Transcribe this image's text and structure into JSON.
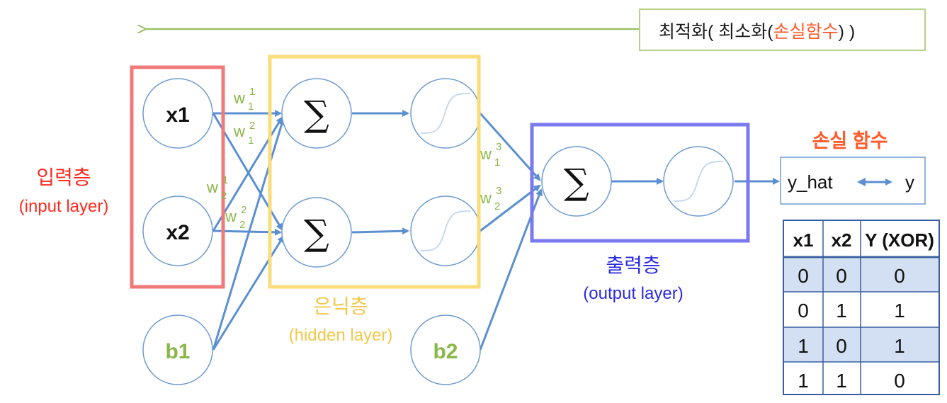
{
  "colors": {
    "arrow": "#5b8fd0",
    "node_stroke": "#6e9bd2",
    "input_box": "#f07a7a",
    "hidden_box": "#fadd7a",
    "output_box": "#7a7af0",
    "weight_green": "#8bb648",
    "bias_green": "#8bb648",
    "red_text": "#ff2a1f",
    "orange_text": "#ff5a2a",
    "yellow_text": "#f2c84a",
    "blue_text": "#2a2ae0",
    "table_border": "#3a5fa0",
    "table_shade": "#d3dff2",
    "optimize_arrow": "#9bc266",
    "optimize_box": "#b8d18a"
  },
  "optimize": {
    "text_prefix": "최적화( 최소화(",
    "text_loss": "손실함수",
    "text_suffix": ") )"
  },
  "nodes": {
    "x1": "x1",
    "x2": "x2",
    "b1": "b1",
    "b2": "b2",
    "sum_symbol": "∑"
  },
  "weights": {
    "w11_base": "w",
    "w11_sup": "1",
    "w11_sub": "1",
    "w12_base": "w",
    "w12_sup": "2",
    "w12_sub": "1",
    "w21_base": "w",
    "w21_sup": "1",
    "w21_sub": "2",
    "w22_base": "w",
    "w22_sup": "2",
    "w22_sub": "2",
    "w31_base": "w",
    "w31_sup": "3",
    "w31_sub": "1",
    "w32_base": "w",
    "w32_sup": "3",
    "w32_sub": "2"
  },
  "layers": {
    "input_ko": "입력층",
    "input_en": "(input layer)",
    "hidden_ko": "은닉층",
    "hidden_en": "(hidden layer)",
    "output_ko": "출력층",
    "output_en": "(output layer)"
  },
  "loss": {
    "title": "손실 함수",
    "y_hat": "y_hat",
    "y": "y"
  },
  "table": {
    "headers": [
      "x1",
      "x2",
      "Y (XOR)"
    ],
    "rows": [
      [
        "0",
        "0",
        "0"
      ],
      [
        "0",
        "1",
        "1"
      ],
      [
        "1",
        "0",
        "1"
      ],
      [
        "1",
        "1",
        "0"
      ]
    ]
  }
}
